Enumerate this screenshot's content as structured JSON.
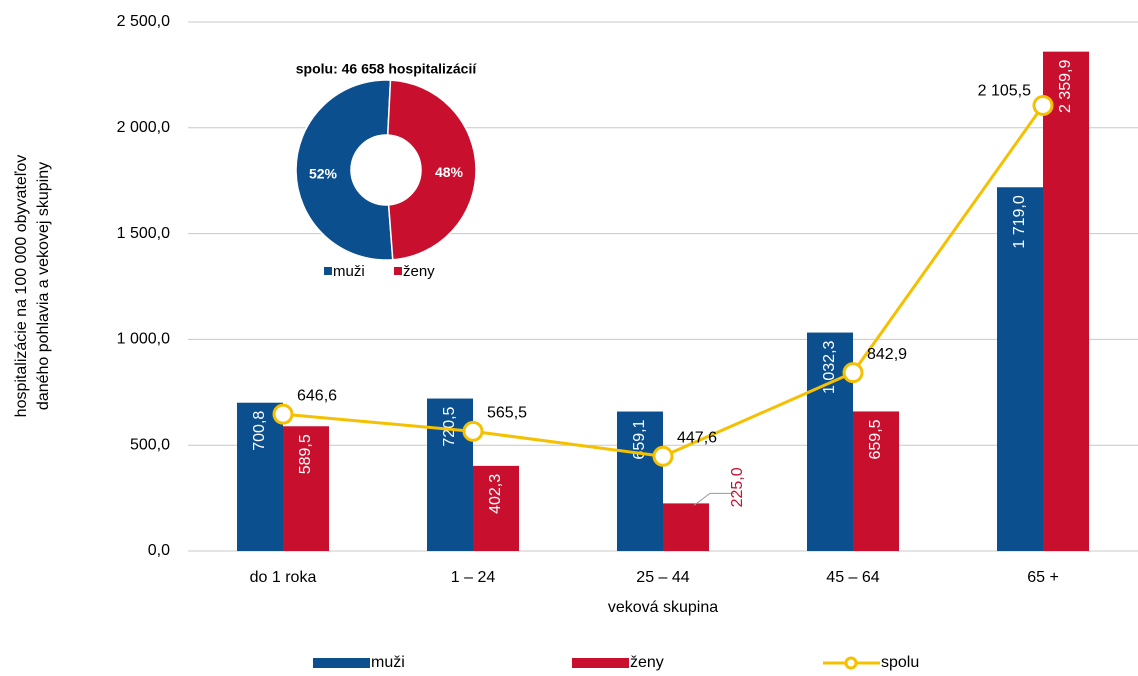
{
  "chart_data": [
    {
      "type": "bar",
      "y_label": [
        "hospitalizácie na 100 000 obyvateľov",
        "daného pohlavia a vekovej skupiny"
      ],
      "x_label": "veková skupina",
      "categories": [
        "do 1 roka",
        "1 – 24",
        "25 – 44",
        "45 – 64",
        "65 +"
      ],
      "ylim": [
        0,
        2500
      ],
      "yticks": [
        {
          "value": 0,
          "label": "0,0"
        },
        {
          "value": 500,
          "label": "500,0"
        },
        {
          "value": 1000,
          "label": "1 000,0"
        },
        {
          "value": 1500,
          "label": "1 500,0"
        },
        {
          "value": 2000,
          "label": "2 000,0"
        },
        {
          "value": 2500,
          "label": "2 500,0"
        }
      ],
      "grid": true,
      "legend": "bottom",
      "series": [
        {
          "name": "muži",
          "type": "bar",
          "color": "#0b4f8e",
          "values": [
            700.8,
            720.5,
            659.1,
            1032.3,
            1719.0
          ],
          "value_labels": [
            "700,8",
            "720,5",
            "659,1",
            "1 032,3",
            "1 719,0"
          ]
        },
        {
          "name": "ženy",
          "type": "bar",
          "color": "#c8102e",
          "values": [
            589.5,
            402.3,
            225.0,
            659.5,
            2359.9
          ],
          "value_labels": [
            "589,5",
            "402,3",
            "225,0",
            "659,5",
            "2 359,9"
          ]
        },
        {
          "name": "spolu",
          "type": "line",
          "color": "#f5c000",
          "values": [
            646.6,
            565.5,
            447.6,
            842.9,
            2105.5
          ],
          "value_labels": [
            "646,6",
            "565,5",
            "447,6",
            "842,9",
            "2 105,5"
          ]
        }
      ]
    },
    {
      "type": "pie",
      "title": "spolu: 46 658 hospitalizácií",
      "categories": [
        "muži",
        "ženy"
      ],
      "values": [
        52,
        48
      ],
      "value_labels": [
        "52%",
        "48%"
      ],
      "colors": [
        "#0b4f8e",
        "#c8102e"
      ],
      "legend": "bottom"
    }
  ]
}
